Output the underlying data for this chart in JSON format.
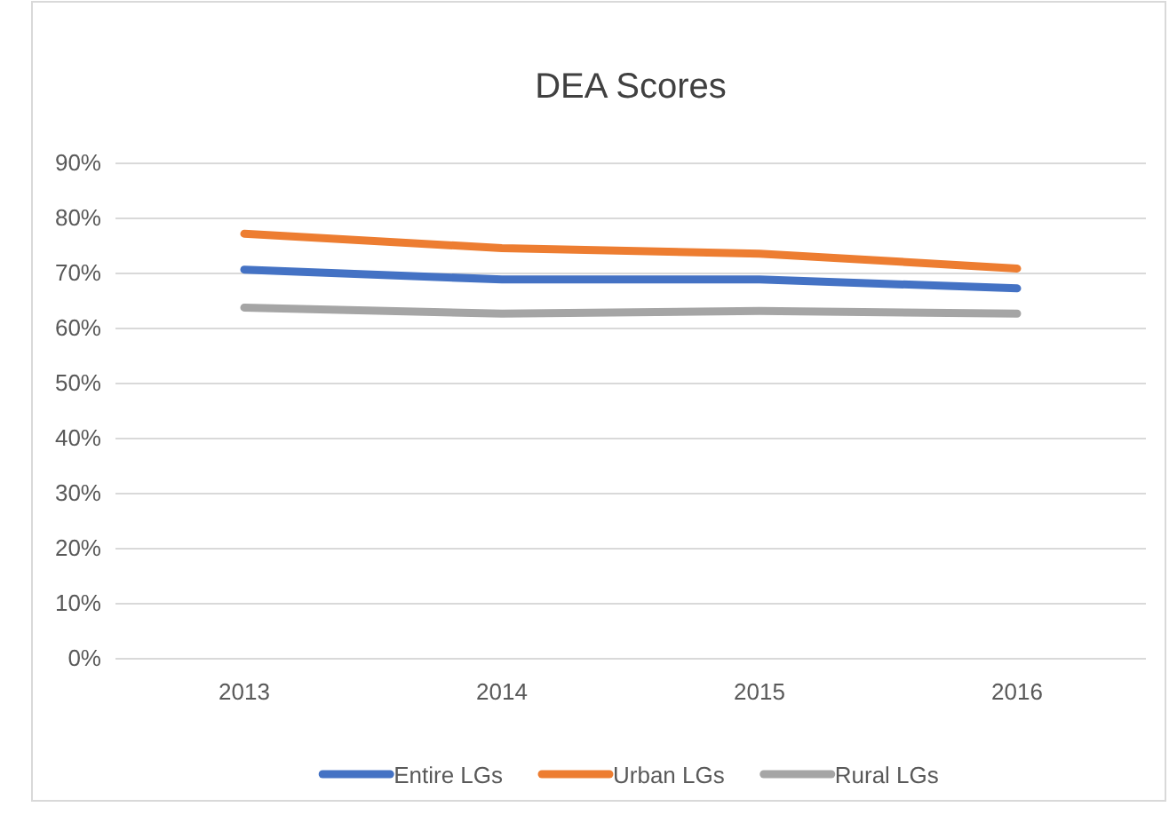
{
  "chart_data": {
    "type": "line",
    "title": "DEA Scores",
    "categories": [
      "2013",
      "2014",
      "2015",
      "2016"
    ],
    "series": [
      {
        "name": "Entire LGs",
        "color": "#4472c4",
        "values": [
          70.7,
          68.9,
          68.9,
          67.3
        ]
      },
      {
        "name": "Urban LGs",
        "color": "#ed7d31",
        "values": [
          77.2,
          74.6,
          73.6,
          70.9
        ]
      },
      {
        "name": "Rural LGs",
        "color": "#a5a5a5",
        "values": [
          63.8,
          62.7,
          63.2,
          62.7
        ]
      }
    ],
    "ylim": [
      0,
      90
    ],
    "yticks": [
      {
        "value": 0,
        "label": "0%"
      },
      {
        "value": 10,
        "label": "10%"
      },
      {
        "value": 20,
        "label": "20%"
      },
      {
        "value": 30,
        "label": "30%"
      },
      {
        "value": 40,
        "label": "40%"
      },
      {
        "value": 50,
        "label": "50%"
      },
      {
        "value": 60,
        "label": "60%"
      },
      {
        "value": 70,
        "label": "70%"
      },
      {
        "value": 80,
        "label": "80%"
      },
      {
        "value": 90,
        "label": "90%"
      }
    ],
    "grid": "y",
    "legend": "bottom",
    "marker": "none",
    "line_style": "solid"
  }
}
